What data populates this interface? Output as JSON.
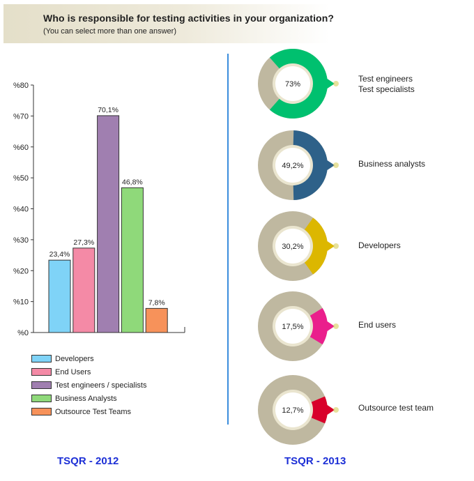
{
  "header": {
    "title": "Who is responsible for testing activities in your organization?",
    "subtitle": "(You can select more than one answer)"
  },
  "footer": {
    "left_label": "TSQR - 2012",
    "right_label": "TSQR - 2013"
  },
  "colors": {
    "divider": "#3a8ddc",
    "footer_text": "#1c2fd6",
    "donut_base": "#bfb8a0"
  },
  "chart_data": [
    {
      "type": "bar",
      "title": "TSQR - 2012",
      "categories": [
        "Developers",
        "End Users",
        "Test engineers / specialists",
        "Business Analysts",
        "Outsource Test Teams"
      ],
      "values": [
        23.4,
        27.3,
        70.1,
        46.8,
        7.8
      ],
      "value_labels": [
        "23,4%",
        "27,3%",
        "70,1%",
        "46,8%",
        "7,8%"
      ],
      "colors": [
        "#7fd3f7",
        "#f48aa6",
        "#a07fb0",
        "#8fd97a",
        "#f7925a"
      ],
      "ylim": [
        0,
        80
      ],
      "yticks": [
        0,
        10,
        20,
        30,
        40,
        50,
        60,
        70,
        80
      ],
      "ytick_labels": [
        "%0",
        "%10",
        "%20",
        "%30",
        "%40",
        "%50",
        "%60",
        "%70",
        "%80"
      ],
      "xlabel": "",
      "ylabel": "",
      "legend": [
        "Developers",
        "End Users",
        "Test engineers / specialists",
        "Business Analysts",
        "Outsource Test Teams"
      ],
      "legend_position": "bottom-left"
    },
    {
      "type": "pie",
      "title": "TSQR - 2013",
      "items": [
        {
          "label_lines": [
            "Test engineers",
            "Test specialists"
          ],
          "value": 73,
          "value_label": "73%",
          "color": "#00c06f"
        },
        {
          "label_lines": [
            "Business analysts"
          ],
          "value": 49.2,
          "value_label": "49,2%",
          "color": "#2e6189"
        },
        {
          "label_lines": [
            "Developers"
          ],
          "value": 30.2,
          "value_label": "30,2%",
          "color": "#dcb700"
        },
        {
          "label_lines": [
            "End users"
          ],
          "value": 17.5,
          "value_label": "17,5%",
          "color": "#ea1f8c"
        },
        {
          "label_lines": [
            "Outsource test team"
          ],
          "value": 12.7,
          "value_label": "12,7%",
          "color": "#d8002a"
        }
      ]
    }
  ]
}
